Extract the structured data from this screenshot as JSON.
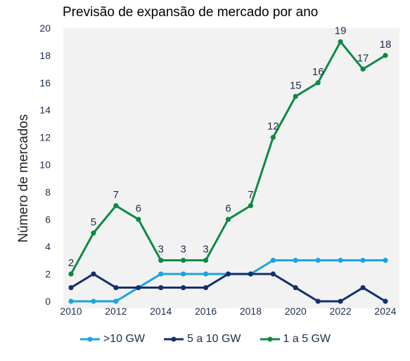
{
  "chart_data": {
    "type": "line",
    "title": "Previsão de expansão de mercado por ano",
    "xlabel": "",
    "ylabel": "Número de mercados",
    "x": [
      2010,
      2011,
      2012,
      2013,
      2014,
      2015,
      2016,
      2017,
      2018,
      2019,
      2020,
      2021,
      2022,
      2023,
      2024
    ],
    "xticks": [
      "2010",
      "2012",
      "2014",
      "2016",
      "2018",
      "2020",
      "2022",
      "2024"
    ],
    "yticks": [
      "0",
      "2",
      "4",
      "6",
      "8",
      "10",
      "12",
      "14",
      "16",
      "18",
      "20"
    ],
    "xlim": [
      2010,
      2024
    ],
    "ylim": [
      0,
      20
    ],
    "grid": false,
    "legend_position": "bottom",
    "series": [
      {
        "name": ">10 GW",
        "color": "#1ba4e0",
        "values": [
          0,
          0,
          0,
          1,
          2,
          2,
          2,
          2,
          2,
          3,
          3,
          3,
          3,
          3,
          3
        ],
        "labels": []
      },
      {
        "name": "5 a 10 GW",
        "color": "#12306e",
        "values": [
          1,
          2,
          1,
          1,
          1,
          1,
          1,
          2,
          2,
          2,
          1,
          0,
          0,
          1,
          0
        ],
        "labels": []
      },
      {
        "name": "1 a 5 GW",
        "color": "#0c8a44",
        "values": [
          2,
          5,
          7,
          6,
          3,
          3,
          3,
          6,
          7,
          12,
          15,
          16,
          19,
          17,
          18
        ],
        "labels": [
          "2",
          "5",
          "7",
          "6",
          "3",
          "3",
          "3",
          "6",
          "7",
          "12",
          "15",
          "16",
          "19",
          "17",
          "18"
        ]
      }
    ]
  }
}
